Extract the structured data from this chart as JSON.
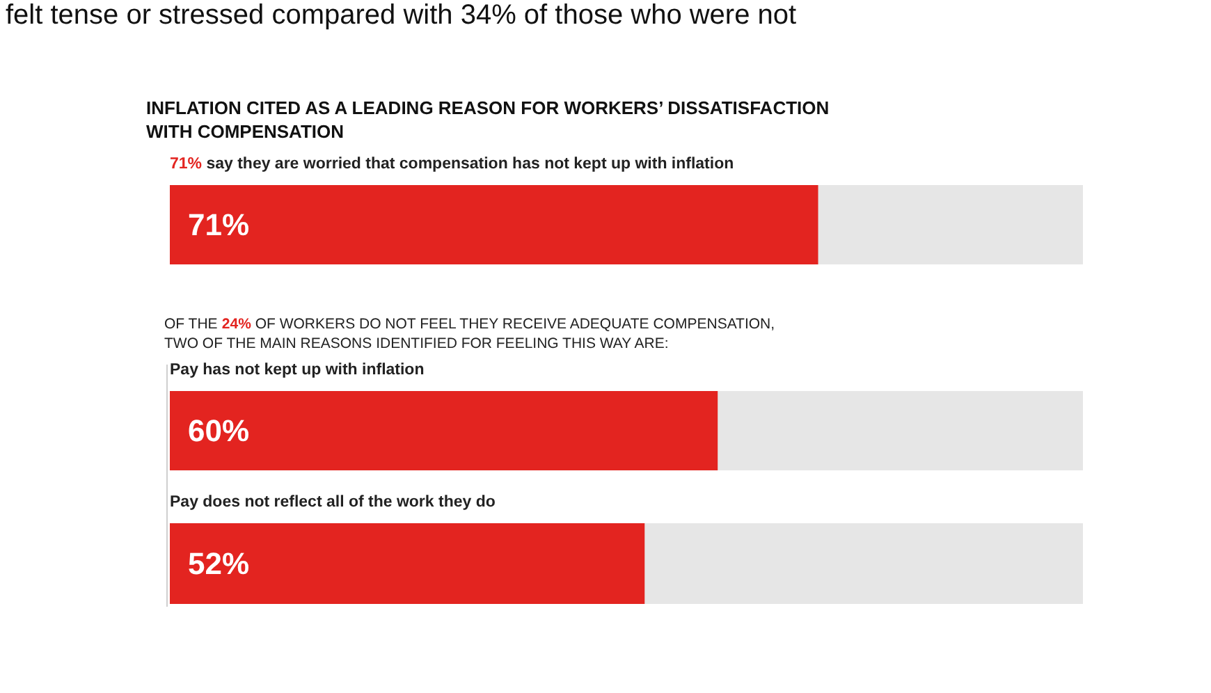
{
  "chart_data": {
    "type": "bar",
    "orientation": "horizontal",
    "title": "INFLATION CITED AS A LEADING REASON FOR WORKERS’ DISSATISFACTION\nWITH COMPENSATION",
    "categories": [
      "71% say they are worried that compensation has not kept up with inflation",
      "Pay has not kept up with inflation",
      "Pay does not reflect all of the work they do"
    ],
    "values": [
      71,
      60,
      52
    ],
    "value_labels": [
      "71%",
      "60%",
      "52%"
    ],
    "color": "#e32420",
    "xlim": [
      0,
      100
    ],
    "annotations": [
      "felt tense or stressed compared with 34% of those who were not",
      "OF THE 24% OF WORKERS DO NOT FEEL THEY RECEIVE ADEQUATE COMPENSATION,\nTWO OF THE MAIN REASONS IDENTIFIED FOR FEELING THIS WAY ARE:"
    ]
  }
}
